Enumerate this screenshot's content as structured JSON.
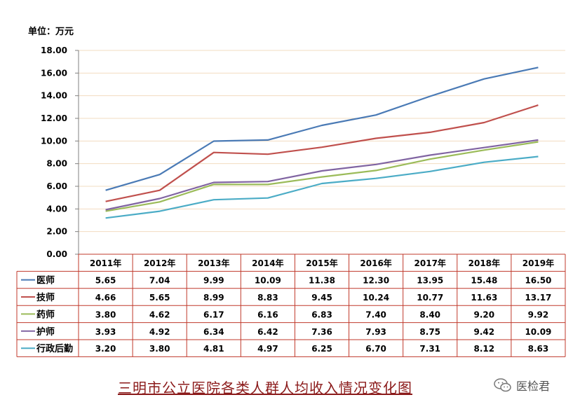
{
  "unit_label": "单位：万元",
  "caption": "三明市公立医院各类人群人均收入情况变化图",
  "watermark": "医检君",
  "chart_data": {
    "type": "line",
    "categories": [
      "2011年",
      "2012年",
      "2013年",
      "2014年",
      "2015年",
      "2016年",
      "2017年",
      "2018年",
      "2019年"
    ],
    "ylim": [
      0,
      18
    ],
    "yticks": [
      "0.00",
      "2.00",
      "4.00",
      "6.00",
      "8.00",
      "10.00",
      "12.00",
      "14.00",
      "16.00",
      "18.00"
    ],
    "grid": true,
    "legend": "data-table",
    "series": [
      {
        "name": "医师",
        "color": "#4a7ab5",
        "values": [
          5.65,
          7.04,
          9.99,
          10.09,
          11.38,
          12.3,
          13.95,
          15.48,
          16.5
        ],
        "labels": [
          "5.65",
          "7.04",
          "9.99",
          "10.09",
          "11.38",
          "12.30",
          "13.95",
          "15.48",
          "16.50"
        ]
      },
      {
        "name": "技师",
        "color": "#c0504d",
        "values": [
          4.66,
          5.65,
          8.99,
          8.83,
          9.45,
          10.24,
          10.77,
          11.63,
          13.17
        ],
        "labels": [
          "4.66",
          "5.65",
          "8.99",
          "8.83",
          "9.45",
          "10.24",
          "10.77",
          "11.63",
          "13.17"
        ]
      },
      {
        "name": "药师",
        "color": "#9bbb59",
        "values": [
          3.8,
          4.62,
          6.17,
          6.16,
          6.83,
          7.4,
          8.4,
          9.2,
          9.92
        ],
        "labels": [
          "3.80",
          "4.62",
          "6.17",
          "6.16",
          "6.83",
          "7.40",
          "8.40",
          "9.20",
          "9.92"
        ]
      },
      {
        "name": "护师",
        "color": "#8064a2",
        "values": [
          3.93,
          4.92,
          6.34,
          6.42,
          7.36,
          7.93,
          8.75,
          9.42,
          10.09
        ],
        "labels": [
          "3.93",
          "4.92",
          "6.34",
          "6.42",
          "7.36",
          "7.93",
          "8.75",
          "9.42",
          "10.09"
        ]
      },
      {
        "name": "行政后勤",
        "color": "#4bacc6",
        "values": [
          3.2,
          3.8,
          4.81,
          4.97,
          6.25,
          6.7,
          7.31,
          8.12,
          8.63
        ],
        "labels": [
          "3.20",
          "3.80",
          "4.81",
          "4.97",
          "6.25",
          "6.70",
          "7.31",
          "8.12",
          "8.63"
        ]
      }
    ]
  }
}
